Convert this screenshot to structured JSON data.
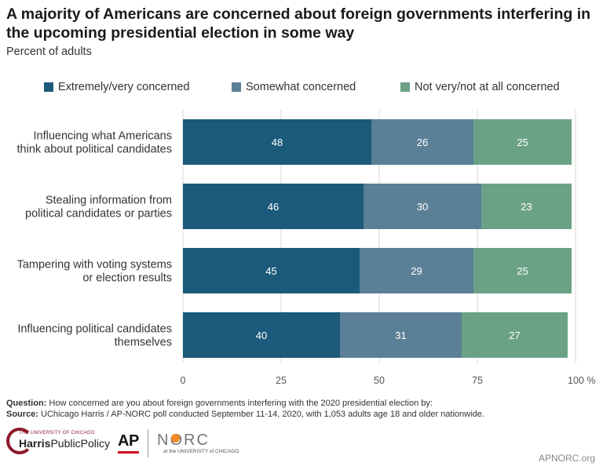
{
  "chart_data": {
    "type": "bar",
    "orientation": "horizontal",
    "stacked": true,
    "title": "A majority of Americans are concerned about foreign governments interfering in the upcoming presidential election in some way",
    "subtitle": "Percent of adults",
    "categories": [
      [
        "Influencing what Americans",
        "think about political candidates"
      ],
      [
        "Stealing information from",
        "political candidates or parties"
      ],
      [
        "Tampering with voting systems",
        "or election results"
      ],
      [
        "Influencing political candidates",
        "themselves"
      ]
    ],
    "series": [
      {
        "name": "Extremely/very concerned",
        "color": "#1b5a7a",
        "values": [
          48,
          46,
          45,
          40
        ]
      },
      {
        "name": "Somewhat concerned",
        "color": "#5b7f96",
        "values": [
          26,
          30,
          29,
          31
        ]
      },
      {
        "name": "Not very/not at all concerned",
        "color": "#6ba286",
        "values": [
          25,
          23,
          25,
          27
        ]
      }
    ],
    "xlim": [
      0,
      100
    ],
    "xticks": [
      "0",
      "25",
      "50",
      "75",
      "100 %"
    ],
    "xtick_values": [
      0,
      25,
      50,
      75,
      100
    ],
    "grid": true,
    "legend_position": "top"
  },
  "footnote": {
    "question_label": "Question:",
    "question_text": " How concerned are you about foreign governments interfering with the 2020 presidential election by:",
    "source_label": "Source:",
    "source_text": " UChicago Harris / AP-NORC poll conducted September 11-14, 2020, with 1,053 adults age 18 and older nationwide."
  },
  "logos": {
    "harris_small": "THE UNIVERSITY OF CHICAGO",
    "harris_bold": "Harris",
    "harris_rest": "PublicPolicy",
    "ap": "AP",
    "norc": "NORC",
    "norc_sub": "at the UNIVERSITY of CHICAGO"
  },
  "site": "APNORC.org",
  "colors": {
    "grid": "#d9d9d9"
  }
}
